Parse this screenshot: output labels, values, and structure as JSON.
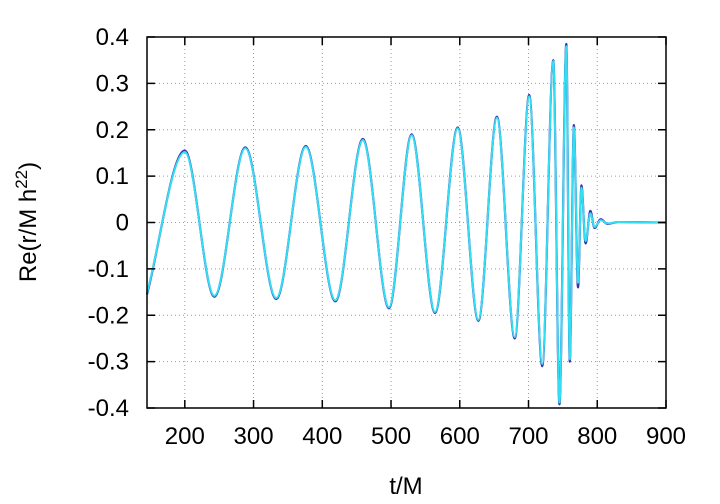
{
  "chart_data": {
    "type": "line",
    "title": "",
    "xlabel": "t/M",
    "ylabel_main": "Re(r/M h",
    "ylabel_sup": "22",
    "ylabel_close": ")",
    "xlim": [
      145,
      900
    ],
    "ylim": [
      -0.4,
      0.4
    ],
    "x_ticks": [
      200,
      300,
      400,
      500,
      600,
      700,
      800,
      900
    ],
    "y_ticks": [
      0.4,
      0.3,
      0.2,
      0.1,
      0,
      -0.1,
      -0.2,
      -0.3,
      -0.4
    ],
    "x_tick_labels": [
      "200",
      "300",
      "400",
      "500",
      "600",
      "700",
      "800",
      "900"
    ],
    "y_tick_labels": [
      "0.4",
      "0.3",
      "0.2",
      "0.1",
      "0",
      "-0.1",
      "-0.2",
      "-0.3",
      "-0.4"
    ],
    "grid": true,
    "legend": "none",
    "series": [
      {
        "color": "#3a2fb0",
        "x": [
          145,
          200,
          243,
          288,
          333,
          376,
          419,
          459,
          497,
          530,
          564,
          597,
          627,
          654,
          680,
          701,
          720,
          736,
          745,
          755,
          760,
          766,
          772,
          777,
          783,
          790,
          796,
          805,
          815,
          830,
          900
        ],
        "values": [
          -0.155,
          0.155,
          -0.16,
          0.162,
          -0.165,
          0.165,
          -0.17,
          0.18,
          -0.185,
          0.19,
          -0.195,
          0.205,
          -0.212,
          0.228,
          -0.25,
          0.275,
          -0.31,
          0.35,
          -0.392,
          0.385,
          -0.3,
          0.21,
          -0.14,
          0.08,
          -0.045,
          0.025,
          -0.012,
          0.007,
          -0.003,
          0.001,
          0
        ]
      },
      {
        "color": "#33ddf2",
        "x": [
          145,
          200,
          243,
          288,
          333,
          376,
          419,
          459,
          497,
          530,
          564,
          597,
          627,
          654,
          680,
          701,
          720,
          736,
          745,
          755,
          760,
          766,
          772,
          777,
          783,
          790,
          796,
          805,
          815,
          830,
          900
        ],
        "values": [
          -0.152,
          0.152,
          -0.158,
          0.16,
          -0.163,
          0.163,
          -0.168,
          0.178,
          -0.183,
          0.188,
          -0.193,
          0.203,
          -0.21,
          0.226,
          -0.247,
          0.272,
          -0.305,
          0.348,
          -0.388,
          0.38,
          -0.295,
          0.205,
          -0.13,
          0.075,
          -0.04,
          0.02,
          -0.01,
          0.005,
          -0.002,
          0.001,
          0
        ]
      }
    ]
  }
}
